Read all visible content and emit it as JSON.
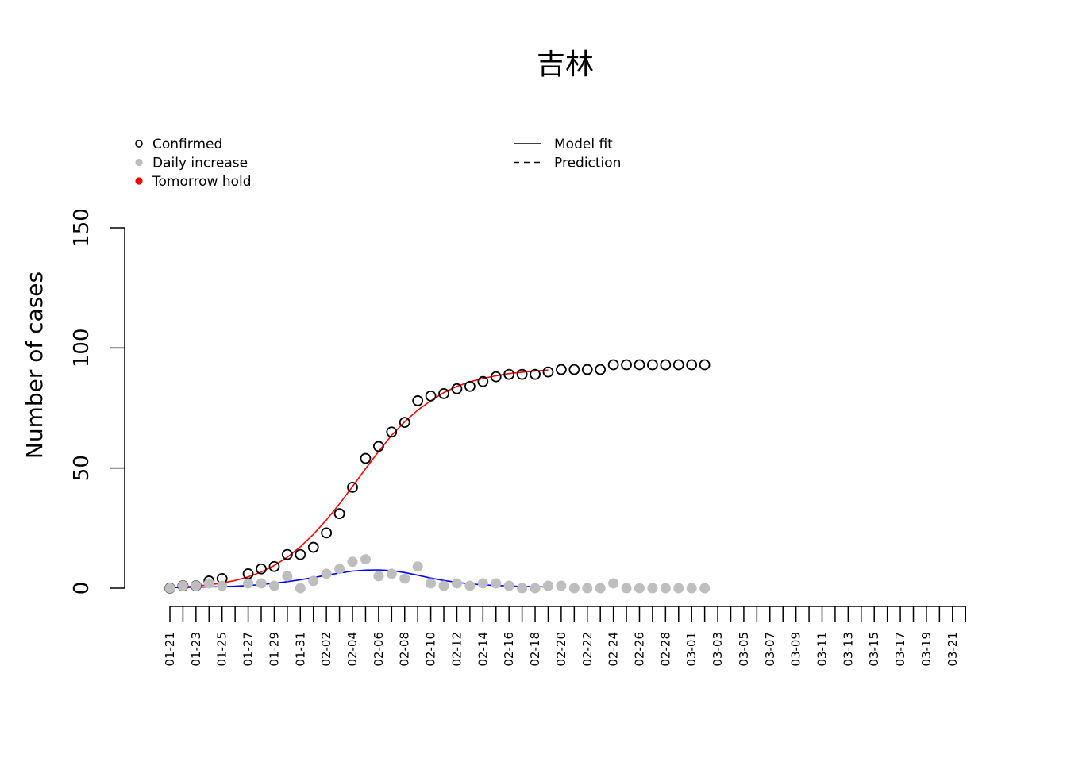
{
  "chart_data": {
    "type": "scatter",
    "title": "吉林",
    "ylabel": "Number of cases",
    "xlabel": "",
    "ylim": [
      0,
      150
    ],
    "yticks": [
      0,
      50,
      100,
      150
    ],
    "x_tick_dates": [
      "01-21",
      "01-22",
      "01-23",
      "01-24",
      "01-25",
      "01-26",
      "01-27",
      "01-28",
      "01-29",
      "01-30",
      "01-31",
      "02-01",
      "02-02",
      "02-03",
      "02-04",
      "02-05",
      "02-06",
      "02-07",
      "02-08",
      "02-09",
      "02-10",
      "02-11",
      "02-12",
      "02-13",
      "02-14",
      "02-15",
      "02-16",
      "02-17",
      "02-18",
      "02-19",
      "02-20",
      "02-21",
      "02-22",
      "02-23",
      "02-24",
      "02-25",
      "02-26",
      "02-27",
      "02-28",
      "02-29",
      "03-01",
      "03-02",
      "03-03",
      "03-04",
      "03-05",
      "03-06",
      "03-07",
      "03-08",
      "03-09",
      "03-10",
      "03-11",
      "03-12",
      "03-13",
      "03-14",
      "03-15",
      "03-16",
      "03-17",
      "03-18",
      "03-19",
      "03-20",
      "03-21",
      "03-22"
    ],
    "x_tick_labels": [
      "01-21",
      "01-23",
      "01-25",
      "01-27",
      "01-29",
      "01-31",
      "02-02",
      "02-04",
      "02-06",
      "02-08",
      "02-10",
      "02-12",
      "02-14",
      "02-16",
      "02-18",
      "02-20",
      "02-22",
      "02-24",
      "02-26",
      "02-28",
      "03-01",
      "03-03",
      "03-05",
      "03-07",
      "03-09",
      "03-11",
      "03-13",
      "03-15",
      "03-17",
      "03-19",
      "03-21"
    ],
    "legend_left": [
      {
        "label": "Confirmed",
        "marker": "open-circle",
        "color": "#000000"
      },
      {
        "label": "Daily increase",
        "marker": "filled-circle",
        "color": "#bebebe"
      },
      {
        "label": "Tomorrow hold",
        "marker": "filled-circle",
        "color": "#ff0000"
      }
    ],
    "legend_right": [
      {
        "label": "Model fit",
        "line": "solid",
        "color": "#000000"
      },
      {
        "label": "Prediction",
        "line": "dashed",
        "color": "#000000"
      }
    ],
    "series": [
      {
        "name": "Confirmed",
        "marker": "open-circle",
        "color": "#000000",
        "x": [
          "01-21",
          "01-22",
          "01-23",
          "01-24",
          "01-25",
          "01-26",
          "01-27",
          "01-28",
          "01-29",
          "01-30",
          "01-31",
          "02-01",
          "02-02",
          "02-03",
          "02-04",
          "02-05",
          "02-06",
          "02-07",
          "02-08",
          "02-09",
          "02-10",
          "02-11",
          "02-12",
          "02-13",
          "02-14",
          "02-15",
          "02-16",
          "02-17",
          "02-18",
          "02-19",
          "02-20",
          "02-21",
          "02-22",
          "02-23",
          "02-24",
          "02-25",
          "02-26",
          "02-27",
          "02-28",
          "02-29",
          "03-01",
          "03-02"
        ],
        "values": [
          0,
          1,
          1,
          3,
          4,
          null,
          6,
          8,
          9,
          14,
          14,
          17,
          23,
          31,
          42,
          54,
          59,
          65,
          69,
          78,
          80,
          81,
          83,
          84,
          86,
          88,
          89,
          89,
          89,
          90,
          91,
          91,
          91,
          91,
          93,
          93,
          93,
          93,
          93,
          93,
          93,
          93
        ]
      },
      {
        "name": "Daily increase",
        "marker": "filled-circle",
        "color": "#bebebe",
        "x": [
          "01-21",
          "01-22",
          "01-23",
          "01-24",
          "01-25",
          "01-26",
          "01-27",
          "01-28",
          "01-29",
          "01-30",
          "01-31",
          "02-01",
          "02-02",
          "02-03",
          "02-04",
          "02-05",
          "02-06",
          "02-07",
          "02-08",
          "02-09",
          "02-10",
          "02-11",
          "02-12",
          "02-13",
          "02-14",
          "02-15",
          "02-16",
          "02-17",
          "02-18",
          "02-19",
          "02-20",
          "02-21",
          "02-22",
          "02-23",
          "02-24",
          "02-25",
          "02-26",
          "02-27",
          "02-28",
          "02-29",
          "03-01",
          "03-02"
        ],
        "values": [
          0,
          1,
          1,
          2,
          1,
          null,
          2,
          2,
          1,
          5,
          0,
          3,
          6,
          8,
          11,
          12,
          5,
          6,
          4,
          9,
          2,
          1,
          2,
          1,
          2,
          2,
          1,
          0,
          0,
          1,
          1,
          0,
          0,
          0,
          2,
          0,
          0,
          0,
          0,
          0,
          0,
          0
        ]
      },
      {
        "name": "Confirmed model fit",
        "line": "solid",
        "color": "#ff0000",
        "x": [
          "01-21",
          "01-22",
          "01-23",
          "01-24",
          "01-25",
          "01-26",
          "01-27",
          "01-28",
          "01-29",
          "01-30",
          "01-31",
          "02-01",
          "02-02",
          "02-03",
          "02-04",
          "02-05",
          "02-06",
          "02-07",
          "02-08",
          "02-09",
          "02-10",
          "02-11",
          "02-12",
          "02-13",
          "02-14",
          "02-15",
          "02-16",
          "02-17",
          "02-18",
          "02-19"
        ],
        "values": [
          0.3,
          0.5,
          0.9,
          1.4,
          2.1,
          3.2,
          4.7,
          6.7,
          9.4,
          12.9,
          17.2,
          22.4,
          28.4,
          35.1,
          42.3,
          49.7,
          56.9,
          63.6,
          69.3,
          74.1,
          78.0,
          81.4,
          84.0,
          85.9,
          87.3,
          88.4,
          89.3,
          89.9,
          90.4,
          90.8
        ]
      },
      {
        "name": "Daily increase model fit",
        "line": "solid",
        "color": "#0000ff",
        "x": [
          "01-21",
          "01-22",
          "01-23",
          "01-24",
          "01-25",
          "01-26",
          "01-27",
          "01-28",
          "01-29",
          "01-30",
          "01-31",
          "02-01",
          "02-02",
          "02-03",
          "02-04",
          "02-05",
          "02-06",
          "02-07",
          "02-08",
          "02-09",
          "02-10",
          "02-11",
          "02-12",
          "02-13",
          "02-14",
          "02-15",
          "02-16",
          "02-17",
          "02-18",
          "02-19"
        ],
        "values": [
          0.2,
          0.3,
          0.4,
          0.5,
          0.6,
          0.8,
          1.1,
          1.5,
          2.0,
          2.7,
          3.5,
          4.4,
          5.4,
          6.3,
          7.1,
          7.5,
          7.6,
          7.3,
          6.5,
          5.4,
          4.2,
          3.2,
          2.4,
          1.8,
          1.4,
          1.1,
          0.9,
          0.7,
          0.6,
          0.5
        ]
      }
    ]
  }
}
